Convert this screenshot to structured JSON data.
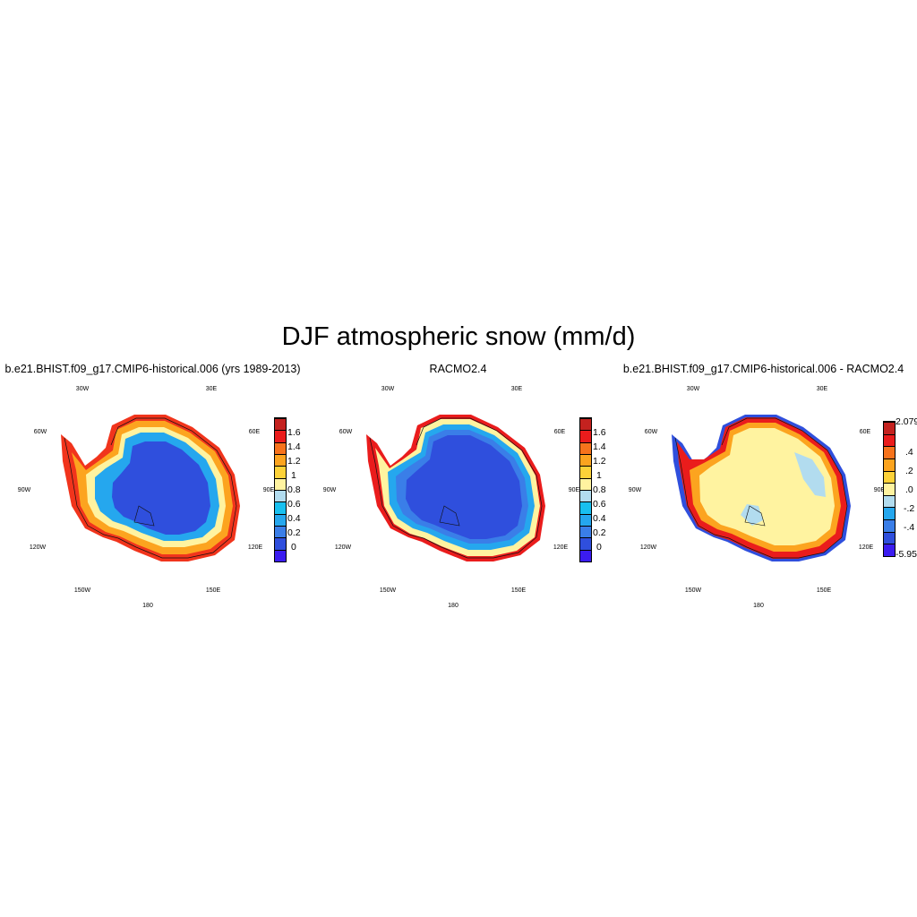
{
  "figure": {
    "title": "DJF atmospheric snow (mm/d)"
  },
  "panels": [
    {
      "title": "b.e21.BHIST.f09_g17.CMIP6-historical.006 (yrs 1989-2013)",
      "lon_labels": {
        "n_left": "30W",
        "n_right": "30E",
        "ul": "60W",
        "ur": "60E",
        "l": "90W",
        "r": "90E",
        "ll": "120W",
        "lr": "120E",
        "bl": "150W",
        "br": "150E",
        "b": "180"
      },
      "colorbar_labels": [
        "1.6",
        "1.4",
        "1.2",
        "1",
        "0.8",
        "0.6",
        "0.4",
        "0.2",
        "0"
      ],
      "interior_value_mm_per_day": 0.15
    },
    {
      "title": "RACMO2.4",
      "lon_labels": {
        "n_left": "30W",
        "n_right": "30E",
        "ul": "60W",
        "ur": "60E",
        "l": "90W",
        "r": "90E",
        "ll": "120W",
        "lr": "120E",
        "bl": "150W",
        "br": "150E",
        "b": "180"
      },
      "colorbar_labels": [
        "1.6",
        "1.4",
        "1.2",
        "1",
        "0.8",
        "0.6",
        "0.4",
        "0.2",
        "0"
      ],
      "interior_value_mm_per_day": 0.1
    },
    {
      "title": "b.e21.BHIST.f09_g17.CMIP6-historical.006 - RACMO2.4",
      "lon_labels": {
        "n_left": "30W",
        "n_right": "30E",
        "ul": "60W",
        "ur": "60E",
        "l": "90W",
        "r": "90E",
        "ll": "120W",
        "lr": "120E",
        "bl": "150W",
        "br": "150E",
        "b": "180"
      },
      "colorbar_labels": [
        "2.079",
        ".4",
        ".2",
        ".0",
        "-.2",
        "-.4",
        "-5.95"
      ],
      "interior_value_mm_per_day": 0.05
    }
  ],
  "colors": {
    "abs_scale": [
      "#3b1cf0",
      "#2f4fdd",
      "#3a7ee8",
      "#25a7ee",
      "#18c0f0",
      "#b2dcef",
      "#fff3a0",
      "#fdd239",
      "#fca41f",
      "#f7731c",
      "#ea1c1c",
      "#c4221f"
    ],
    "diff_scale": [
      "#3b1cf0",
      "#2f4fdd",
      "#3a7ee8",
      "#25a7ee",
      "#b2dcef",
      "#fff3a0",
      "#fdd239",
      "#fca41f",
      "#f7731c",
      "#ea1c1c",
      "#c4221f"
    ]
  }
}
